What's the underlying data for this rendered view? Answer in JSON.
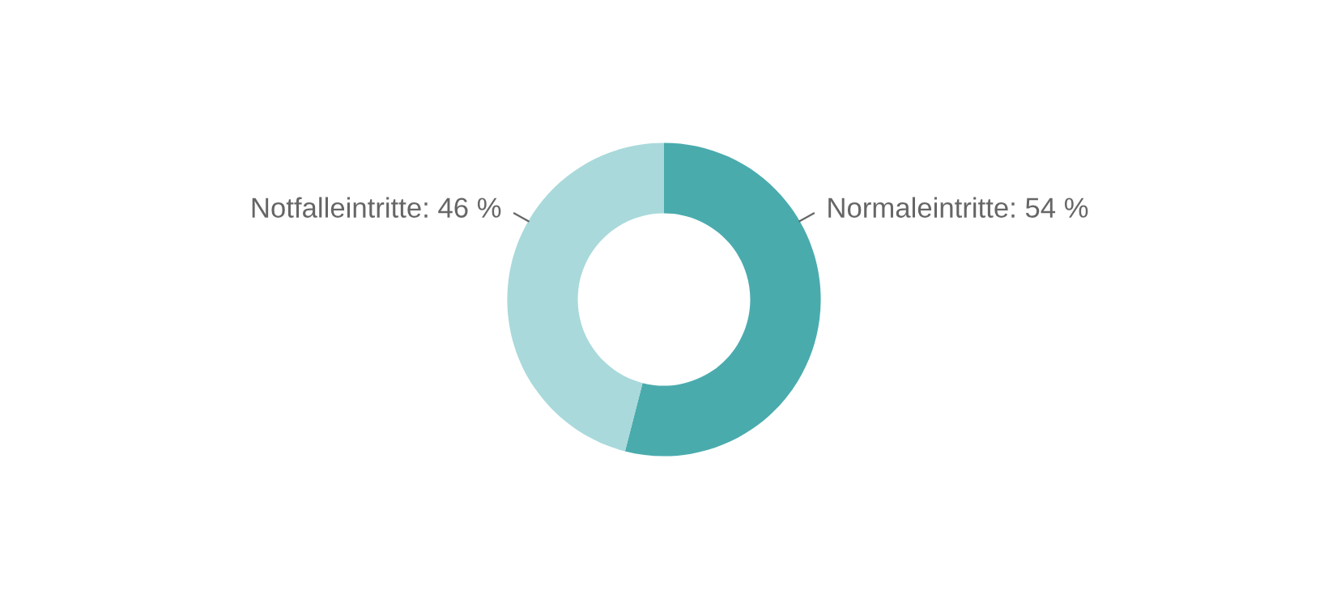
{
  "chart_data": {
    "type": "donut",
    "categories": [
      "Normaleintritte",
      "Notfalleintritte"
    ],
    "values": [
      54,
      46
    ],
    "value_labels": [
      "54 %",
      "46 %"
    ],
    "colors": [
      "#4aabad",
      "#a9d9db"
    ]
  }
}
